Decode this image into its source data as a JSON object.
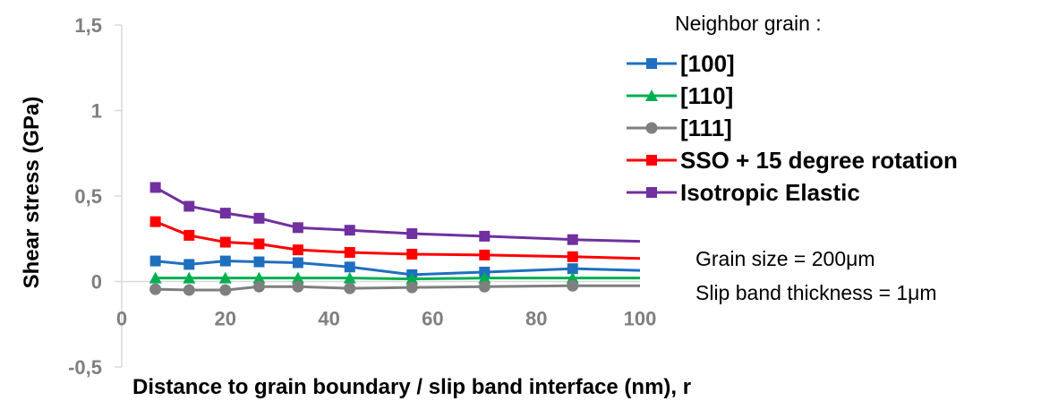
{
  "chart_data": {
    "type": "line",
    "title": "",
    "xlabel": "Distance to grain boundary / slip band interface (nm), r",
    "ylabel": "Shear stress (GPa)",
    "xlim": [
      0,
      100
    ],
    "ylim": [
      -0.5,
      1.5
    ],
    "x_ticks": [
      "0",
      "20",
      "40",
      "60",
      "80",
      "100"
    ],
    "y_ticks": [
      "-0,5",
      "0",
      "0,5",
      "1",
      "1,5"
    ],
    "grid": false,
    "legend_title": "Neighbor grain :",
    "legend_position": "right",
    "x": [
      6.5,
      13,
      20,
      26.5,
      34,
      44,
      56,
      70,
      87,
      100
    ],
    "series": [
      {
        "name": "[100]",
        "color": "#1f6fbf",
        "marker": "square",
        "values": [
          0.12,
          0.1,
          0.12,
          0.115,
          0.11,
          0.085,
          0.04,
          0.055,
          0.075,
          0.065
        ]
      },
      {
        "name": "[110]",
        "color": "#00b050",
        "marker": "triangle",
        "values": [
          0.02,
          0.02,
          0.02,
          0.02,
          0.02,
          0.02,
          0.015,
          0.02,
          0.02,
          0.02
        ]
      },
      {
        "name": "[111]",
        "color": "#7f7f7f",
        "marker": "circle",
        "values": [
          -0.045,
          -0.05,
          -0.05,
          -0.03,
          -0.03,
          -0.04,
          -0.035,
          -0.03,
          -0.025,
          -0.025
        ]
      },
      {
        "name": "SSO + 15 degree rotation",
        "color": "#ff0000",
        "marker": "square",
        "values": [
          0.35,
          0.27,
          0.23,
          0.22,
          0.185,
          0.17,
          0.16,
          0.155,
          0.145,
          0.135
        ]
      },
      {
        "name": "Isotropic Elastic",
        "color": "#7030a0",
        "marker": "square",
        "values": [
          0.55,
          0.44,
          0.4,
          0.37,
          0.315,
          0.3,
          0.28,
          0.265,
          0.245,
          0.235
        ]
      }
    ],
    "annotations": [
      "Grain size = 200μm",
      "Slip band thickness = 1μm"
    ]
  }
}
